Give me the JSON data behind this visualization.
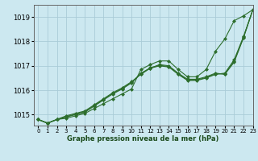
{
  "title": "Graphe pression niveau de la mer (hPa)",
  "bg_color": "#cce8f0",
  "grid_color": "#aaccd8",
  "line_color": "#2d6e2d",
  "xlim": [
    -0.5,
    23
  ],
  "ylim": [
    1014.55,
    1019.5
  ],
  "yticks": [
    1015,
    1016,
    1017,
    1018,
    1019
  ],
  "xticks": [
    0,
    1,
    2,
    3,
    4,
    5,
    6,
    7,
    8,
    9,
    10,
    11,
    12,
    13,
    14,
    15,
    16,
    17,
    18,
    19,
    20,
    21,
    22,
    23
  ],
  "series": [
    [
      1014.8,
      1014.65,
      1014.8,
      1014.85,
      1014.95,
      1015.05,
      1015.25,
      1015.45,
      1015.65,
      1015.85,
      1016.05,
      1016.85,
      1017.05,
      1017.2,
      1017.2,
      1016.85,
      1016.55,
      1016.55,
      1016.85,
      1017.6,
      1018.1,
      1018.85,
      1019.05,
      1019.3
    ],
    [
      1014.8,
      1014.65,
      1014.8,
      1014.9,
      1015.0,
      1015.1,
      1015.35,
      1015.6,
      1015.85,
      1016.05,
      1016.3,
      1016.7,
      1016.9,
      1017.05,
      1017.0,
      1016.7,
      1016.45,
      1016.45,
      1016.55,
      1016.7,
      1016.65,
      1017.15,
      1018.15,
      1019.3
    ],
    [
      1014.8,
      1014.65,
      1014.8,
      1014.95,
      1015.05,
      1015.15,
      1015.4,
      1015.65,
      1015.9,
      1016.1,
      1016.35,
      1016.65,
      1016.9,
      1017.0,
      1016.95,
      1016.65,
      1016.4,
      1016.4,
      1016.5,
      1016.65,
      1016.7,
      1017.25,
      1018.2,
      1019.3
    ],
    [
      1014.8,
      1014.65,
      1014.8,
      1014.92,
      1015.02,
      1015.12,
      1015.37,
      1015.62,
      1015.87,
      1016.07,
      1016.32,
      1016.67,
      1016.92,
      1017.02,
      1016.97,
      1016.67,
      1016.42,
      1016.42,
      1016.52,
      1016.67,
      1016.67,
      1017.2,
      1018.17,
      1019.3
    ]
  ]
}
